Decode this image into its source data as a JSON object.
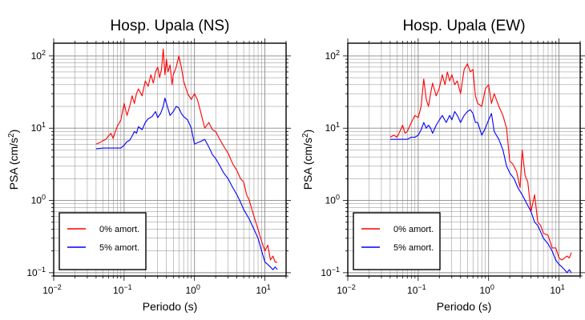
{
  "chart_data": [
    {
      "type": "line",
      "title": "Hosp. Upala (NS)",
      "xlabel": "Periodo (s)",
      "ylabel_prefix": "PSA (cm/s",
      "ylabel_sup": "2",
      "ylabel_suffix": ")",
      "xscale": "log",
      "yscale": "log",
      "xlim": [
        0.01,
        20
      ],
      "ylim": [
        0.09,
        150
      ],
      "grid": true,
      "legend_position": "bottom-left",
      "x_ticks": [
        {
          "base": "10",
          "exp": "−2",
          "value": 0.01
        },
        {
          "base": "10",
          "exp": "−1",
          "value": 0.1
        },
        {
          "base": "10",
          "exp": "0",
          "value": 1
        },
        {
          "base": "10",
          "exp": "1",
          "value": 10
        }
      ],
      "y_ticks": [
        {
          "label": "10",
          "exp": "−1",
          "value": 0.1
        },
        {
          "label": "10",
          "exp": "0",
          "value": 1
        },
        {
          "label": "10",
          "exp": "1",
          "value": 10
        },
        {
          "label": "10",
          "exp": "2",
          "value": 100
        }
      ],
      "series": [
        {
          "name": "0% amort.",
          "color": "#ff0000",
          "x": [
            0.04,
            0.045,
            0.05,
            0.055,
            0.06,
            0.065,
            0.07,
            0.075,
            0.08,
            0.09,
            0.1,
            0.11,
            0.12,
            0.13,
            0.14,
            0.15,
            0.16,
            0.18,
            0.2,
            0.22,
            0.24,
            0.26,
            0.28,
            0.3,
            0.32,
            0.34,
            0.36,
            0.38,
            0.4,
            0.42,
            0.45,
            0.48,
            0.5,
            0.55,
            0.6,
            0.65,
            0.7,
            0.8,
            0.9,
            1.0,
            1.1,
            1.2,
            1.4,
            1.6,
            1.8,
            2.0,
            2.2,
            2.5,
            2.8,
            3.0,
            3.5,
            4.0,
            4.5,
            5.0,
            5.5,
            6.0,
            7.0,
            8.0,
            9.0,
            10.0,
            11.0,
            12.0,
            13.0,
            14.0,
            15.0
          ],
          "y": [
            6.0,
            6.3,
            6.7,
            7.0,
            7.8,
            8.5,
            7.2,
            9.0,
            10.5,
            13.0,
            22.0,
            15.0,
            20.0,
            28.0,
            22.0,
            30.0,
            35.0,
            28.0,
            45.0,
            38.0,
            55.0,
            42.0,
            60.0,
            70.0,
            50.0,
            65.0,
            125.0,
            55.0,
            90.0,
            60.0,
            75.0,
            40.0,
            55.0,
            70.0,
            100.0,
            70.0,
            45.0,
            30.0,
            25.0,
            30.0,
            25.0,
            18.0,
            10.0,
            12.0,
            9.5,
            9.0,
            7.5,
            6.0,
            5.0,
            4.5,
            3.2,
            2.6,
            2.0,
            1.8,
            1.2,
            1.0,
            0.6,
            0.4,
            0.27,
            0.2,
            0.24,
            0.15,
            0.17,
            0.14,
            0.14
          ]
        },
        {
          "name": "5% amort.",
          "color": "#0000ff",
          "x": [
            0.04,
            0.05,
            0.06,
            0.07,
            0.08,
            0.09,
            0.1,
            0.11,
            0.12,
            0.13,
            0.14,
            0.15,
            0.16,
            0.18,
            0.2,
            0.22,
            0.25,
            0.28,
            0.3,
            0.33,
            0.36,
            0.38,
            0.4,
            0.45,
            0.5,
            0.55,
            0.6,
            0.65,
            0.7,
            0.8,
            0.9,
            1.0,
            1.1,
            1.2,
            1.4,
            1.6,
            1.8,
            2.0,
            2.3,
            2.6,
            3.0,
            3.5,
            4.0,
            4.5,
            5.0,
            6.0,
            7.0,
            8.0,
            9.0,
            10.0,
            11.0,
            12.0,
            13.0,
            14.0,
            15.0
          ],
          "y": [
            5.2,
            5.3,
            5.3,
            5.3,
            5.3,
            5.3,
            5.8,
            6.5,
            6.8,
            7.8,
            9.0,
            8.5,
            10.5,
            9.5,
            12.0,
            13.5,
            14.5,
            17.0,
            14.0,
            16.0,
            20.0,
            26.0,
            22.0,
            15.0,
            17.0,
            20.0,
            19.0,
            16.0,
            14.5,
            13.0,
            10.0,
            6.0,
            6.3,
            6.5,
            7.0,
            5.5,
            4.3,
            3.8,
            3.0,
            2.4,
            2.0,
            1.5,
            1.2,
            0.95,
            0.75,
            0.55,
            0.4,
            0.3,
            0.2,
            0.14,
            0.13,
            0.12,
            0.11,
            0.12,
            0.11
          ]
        }
      ]
    },
    {
      "type": "line",
      "title": "Hosp. Upala (EW)",
      "xlabel": "Periodo (s)",
      "ylabel_prefix": "PSA (cm/s",
      "ylabel_sup": "2",
      "ylabel_suffix": ")",
      "xscale": "log",
      "yscale": "log",
      "xlim": [
        0.01,
        20
      ],
      "ylim": [
        0.09,
        150
      ],
      "grid": true,
      "legend_position": "bottom-left",
      "x_ticks": [
        {
          "base": "10",
          "exp": "−2",
          "value": 0.01
        },
        {
          "base": "10",
          "exp": "−1",
          "value": 0.1
        },
        {
          "base": "10",
          "exp": "0",
          "value": 1
        },
        {
          "base": "10",
          "exp": "1",
          "value": 10
        }
      ],
      "y_ticks": [
        {
          "label": "10",
          "exp": "−1",
          "value": 0.1
        },
        {
          "label": "10",
          "exp": "0",
          "value": 1
        },
        {
          "label": "10",
          "exp": "1",
          "value": 10
        },
        {
          "label": "10",
          "exp": "2",
          "value": 100
        }
      ],
      "series": [
        {
          "name": "0% amort.",
          "color": "#ff0000",
          "x": [
            0.04,
            0.045,
            0.05,
            0.055,
            0.06,
            0.065,
            0.07,
            0.08,
            0.09,
            0.1,
            0.11,
            0.12,
            0.13,
            0.14,
            0.15,
            0.16,
            0.18,
            0.2,
            0.22,
            0.24,
            0.26,
            0.28,
            0.3,
            0.33,
            0.36,
            0.4,
            0.45,
            0.5,
            0.55,
            0.6,
            0.65,
            0.7,
            0.8,
            0.9,
            1.0,
            1.1,
            1.2,
            1.4,
            1.6,
            1.8,
            2.0,
            2.2,
            2.5,
            2.8,
            3.0,
            3.3,
            3.6,
            4.0,
            4.5,
            5.0,
            5.5,
            6.0,
            7.0,
            8.0,
            9.0,
            10.0,
            11.0,
            12.0,
            13.0,
            14.0,
            15.0
          ],
          "y": [
            7.5,
            8.0,
            7.5,
            9.0,
            11.0,
            8.5,
            9.0,
            12.0,
            15.0,
            14.0,
            20.0,
            48.0,
            25.0,
            20.0,
            30.0,
            42.0,
            28.0,
            36.0,
            55.0,
            40.0,
            60.0,
            45.0,
            55.0,
            40.0,
            45.0,
            30.0,
            65.0,
            78.0,
            60.0,
            65.0,
            28.0,
            22.0,
            20.0,
            35.0,
            40.0,
            22.0,
            30.0,
            20.0,
            15.0,
            10.0,
            3.5,
            3.2,
            2.5,
            1.5,
            5.0,
            2.2,
            1.8,
            0.7,
            1.2,
            0.5,
            0.45,
            0.35,
            0.33,
            0.22,
            0.22,
            0.16,
            0.15,
            0.16,
            0.17,
            0.16,
            0.19
          ]
        },
        {
          "name": "5% amort.",
          "color": "#0000ff",
          "x": [
            0.04,
            0.05,
            0.06,
            0.07,
            0.08,
            0.09,
            0.1,
            0.11,
            0.12,
            0.13,
            0.14,
            0.15,
            0.16,
            0.18,
            0.2,
            0.22,
            0.25,
            0.28,
            0.3,
            0.33,
            0.36,
            0.4,
            0.45,
            0.5,
            0.55,
            0.6,
            0.65,
            0.7,
            0.8,
            0.9,
            1.0,
            1.1,
            1.2,
            1.4,
            1.6,
            1.8,
            2.0,
            2.3,
            2.6,
            3.0,
            3.5,
            4.0,
            4.5,
            5.0,
            6.0,
            7.0,
            8.0,
            9.0,
            10.0,
            11.0,
            12.0,
            13.0,
            14.0,
            15.0
          ],
          "y": [
            7.0,
            7.0,
            7.0,
            7.0,
            7.5,
            7.5,
            8.0,
            9.5,
            12.0,
            10.0,
            11.0,
            10.0,
            8.5,
            11.0,
            13.0,
            15.0,
            12.0,
            15.0,
            13.0,
            17.0,
            15.0,
            12.0,
            15.0,
            17.0,
            18.0,
            16.0,
            12.0,
            12.0,
            8.0,
            10.0,
            13.0,
            16.0,
            9.0,
            7.0,
            5.0,
            3.0,
            2.4,
            2.0,
            1.5,
            1.2,
            0.9,
            0.7,
            0.5,
            0.45,
            0.3,
            0.25,
            0.2,
            0.15,
            0.13,
            0.12,
            0.11,
            0.1,
            0.11,
            0.1
          ]
        }
      ]
    }
  ]
}
